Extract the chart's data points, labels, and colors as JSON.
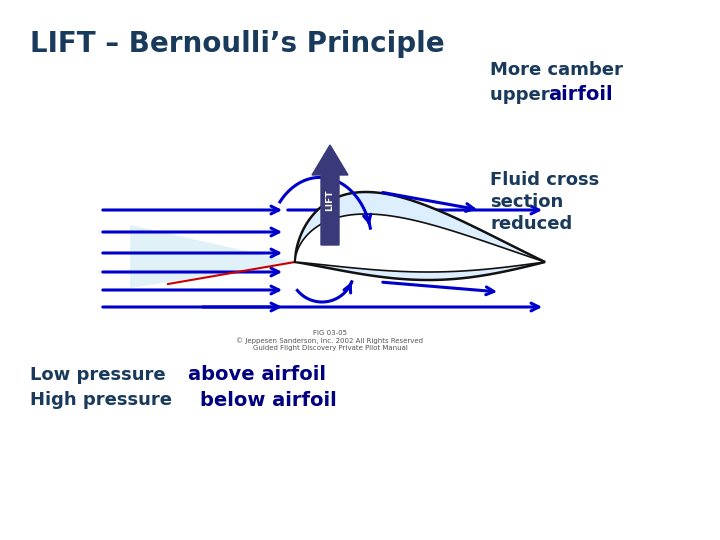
{
  "title": "LIFT – Bernoulli’s Principle",
  "title_color": "#1a3a5c",
  "title_fontsize": 20,
  "bg_color": "#ffffff",
  "right_label1_line1": "More camber",
  "right_label1_line2_normal": "upper ",
  "right_label1_line2_bold": "airfoil",
  "right_label2_line1": "Fluid cross",
  "right_label2_line2": "section",
  "right_label2_line3": "reduced",
  "right_label_color": "#1a3a5c",
  "right_label_bold_color": "#000080",
  "bottom_label1_normal": "Low pressure ",
  "bottom_label1_bold": "above airfoil",
  "bottom_label2_normal": "High pressure ",
  "bottom_label2_bold": "below airfoil",
  "bottom_label_color": "#1a3a5c",
  "bottom_label_bold_color": "#000080",
  "arrow_color": "#0000cc",
  "lift_arrow_color": "#3a3a7a",
  "airfoil_fill": "#ddeeff",
  "airfoil_fill2": "#ffffff",
  "airfoil_edge": "#111111",
  "flow_region_color": "#cce8f4",
  "red_line_color": "#cc0000",
  "copyright_text": "FIG 03-05\n© Jeppesen Sanderson, Inc. 2002 All Rights Reserved\nGuided Flight Discovery Private Pilot Manual",
  "copyright_fontsize": 5.0,
  "copyright_color": "#555555",
  "label_fontsize": 13,
  "bold_fontsize": 14
}
